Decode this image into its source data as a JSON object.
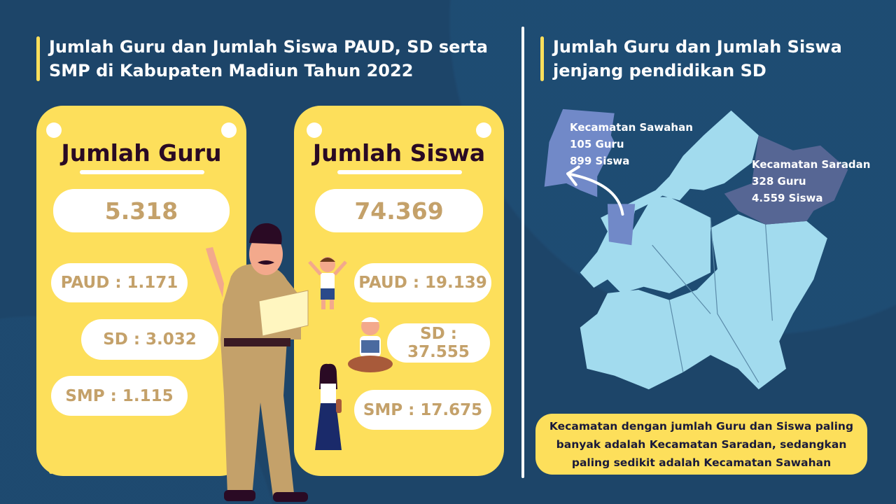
{
  "left_title": "Jumlah Guru dan Jumlah Siswa PAUD, SD serta SMP di Kabupaten Madiun Tahun 2022",
  "right_title": "Jumlah Guru dan Jumlah Siswa jenjang pendidikan SD",
  "guru_card": {
    "heading": "Jumlah Guru",
    "total": "5.318",
    "paud": "PAUD : 1.171",
    "sd": "SD : 3.032",
    "smp": "SMP : 1.115"
  },
  "siswa_card": {
    "heading": "Jumlah Siswa",
    "total": "74.369",
    "paud": "PAUD : 19.139",
    "sd": "SD : 37.555",
    "smp": "SMP : 17.675"
  },
  "map": {
    "sawahan": {
      "name": "Kecamatan Sawahan",
      "guru": "105 Guru",
      "siswa": "899 Siswa",
      "color": "#7189c8"
    },
    "saradan": {
      "name": "Kecamatan Saradan",
      "guru": "328 Guru",
      "siswa": "4.559 Siswa",
      "color": "#566694"
    },
    "base_color": "#a2dbee"
  },
  "note": "Kecamatan dengan jumlah Guru dan Siswa paling banyak adalah Kecamatan Saradan, sedangkan paling sedikit adalah Kecamatan Sawahan",
  "colors": {
    "background": "#1d4569",
    "card": "#fddf5b",
    "number": "#c4a16a",
    "heading": "#2a0a24"
  }
}
